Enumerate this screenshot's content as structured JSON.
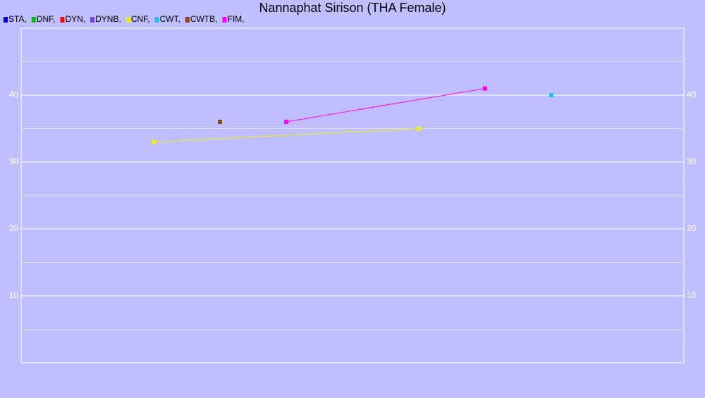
{
  "chart_data": {
    "type": "line",
    "title": "Nannaphat Sirison (THA Female)",
    "xlim": [
      0,
      10
    ],
    "ylim": [
      0,
      50
    ],
    "yticks": [
      10,
      20,
      30,
      40
    ],
    "minor_yticks": [
      5,
      15,
      25,
      35,
      45
    ],
    "grid": true,
    "background": "#bfbfff",
    "grid_color": "#ffffff",
    "series": [
      {
        "name": "STA,",
        "color": "#0000e0",
        "x": [],
        "values": []
      },
      {
        "name": "DNF,",
        "color": "#00c000",
        "x": [],
        "values": []
      },
      {
        "name": "DYN,",
        "color": "#ff0000",
        "x": [],
        "values": []
      },
      {
        "name": "DYNB,",
        "color": "#7f3fe0",
        "x": [],
        "values": []
      },
      {
        "name": "CNF,",
        "color": "#f0f000",
        "x": [
          2,
          6
        ],
        "values": [
          33,
          35
        ]
      },
      {
        "name": "CWT,",
        "color": "#20c0e0",
        "x": [
          8
        ],
        "values": [
          40
        ]
      },
      {
        "name": "CWTB,",
        "color": "#8b4513",
        "x": [
          3
        ],
        "values": [
          36
        ]
      },
      {
        "name": "FIM,",
        "color": "#ff00ff",
        "x": [
          4,
          7
        ],
        "values": [
          36,
          41
        ]
      }
    ]
  }
}
